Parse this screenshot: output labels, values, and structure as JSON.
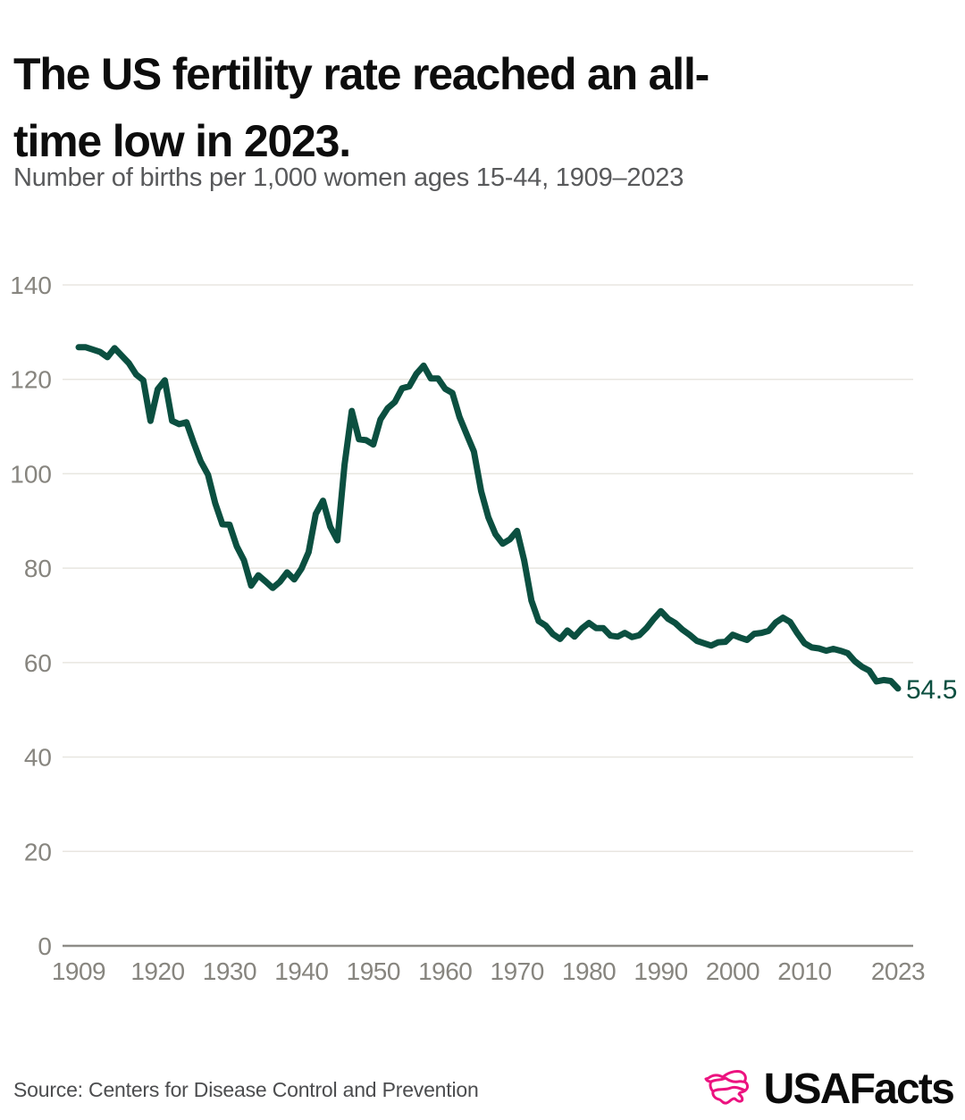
{
  "header": {
    "title_line1": "The US fertility rate reached an all-",
    "title_line2": "time low in 2023.",
    "subtitle": "Number of births per 1,000 women ages 15-44, 1909–2023"
  },
  "footer": {
    "source": "Source: Centers for Disease Control and Prevention",
    "logo_text": "USAFacts"
  },
  "colors": {
    "line": "#0B4F40",
    "grid": "#E8E6E0",
    "axis": "#8E8C87",
    "tick_label": "#87857F",
    "title": "#0D0D0D",
    "subtitle": "#58595B",
    "brand_pink": "#EC127F"
  },
  "chart_data": {
    "type": "line",
    "title": "The US fertility rate reached an all-time low in 2023.",
    "subtitle": "Number of births per 1,000 women ages 15-44, 1909–2023",
    "series_name": "Births per 1,000 women ages 15-44",
    "xlabel": "",
    "ylabel": "",
    "ylim": [
      0,
      140
    ],
    "yticks": [
      0,
      20,
      40,
      60,
      80,
      100,
      120,
      140
    ],
    "xticks": [
      1909,
      1920,
      1930,
      1940,
      1950,
      1960,
      1970,
      1980,
      1990,
      2000,
      2010,
      2023
    ],
    "grid": true,
    "legend_position": "none",
    "end_label": "54.5",
    "x": [
      1909,
      1910,
      1911,
      1912,
      1913,
      1914,
      1915,
      1916,
      1917,
      1918,
      1919,
      1920,
      1921,
      1922,
      1923,
      1924,
      1925,
      1926,
      1927,
      1928,
      1929,
      1930,
      1931,
      1932,
      1933,
      1934,
      1935,
      1936,
      1937,
      1938,
      1939,
      1940,
      1941,
      1942,
      1943,
      1944,
      1945,
      1946,
      1947,
      1948,
      1949,
      1950,
      1951,
      1952,
      1953,
      1954,
      1955,
      1956,
      1957,
      1958,
      1959,
      1960,
      1961,
      1962,
      1963,
      1964,
      1965,
      1966,
      1967,
      1968,
      1969,
      1970,
      1971,
      1972,
      1973,
      1974,
      1975,
      1976,
      1977,
      1978,
      1979,
      1980,
      1981,
      1982,
      1983,
      1984,
      1985,
      1986,
      1987,
      1988,
      1989,
      1990,
      1991,
      1992,
      1993,
      1994,
      1995,
      1996,
      1997,
      1998,
      1999,
      2000,
      2001,
      2002,
      2003,
      2004,
      2005,
      2006,
      2007,
      2008,
      2009,
      2010,
      2011,
      2012,
      2013,
      2014,
      2015,
      2016,
      2017,
      2018,
      2019,
      2020,
      2021,
      2022,
      2023
    ],
    "values": [
      126.8,
      126.8,
      126.3,
      125.8,
      124.7,
      126.6,
      125.0,
      123.4,
      121.0,
      119.8,
      111.2,
      117.9,
      119.8,
      111.2,
      110.5,
      110.9,
      106.6,
      102.6,
      99.8,
      93.8,
      89.3,
      89.2,
      84.6,
      81.7,
      76.3,
      78.5,
      77.2,
      75.8,
      77.1,
      79.1,
      77.6,
      79.9,
      83.4,
      91.5,
      94.3,
      88.8,
      85.9,
      101.9,
      113.3,
      107.3,
      107.1,
      106.2,
      111.5,
      113.9,
      115.2,
      118.1,
      118.5,
      121.2,
      122.9,
      120.2,
      120.2,
      118.0,
      117.1,
      112.0,
      108.3,
      104.7,
      96.3,
      90.8,
      87.2,
      85.2,
      86.1,
      87.9,
      81.6,
      73.1,
      68.8,
      67.8,
      66.0,
      65.0,
      66.8,
      65.5,
      67.2,
      68.4,
      67.3,
      67.3,
      65.7,
      65.5,
      66.3,
      65.4,
      65.8,
      67.3,
      69.2,
      70.9,
      69.3,
      68.4,
      67.0,
      65.9,
      64.6,
      64.1,
      63.6,
      64.3,
      64.4,
      65.9,
      65.3,
      64.8,
      66.1,
      66.3,
      66.7,
      68.5,
      69.5,
      68.6,
      66.2,
      64.1,
      63.2,
      63.0,
      62.5,
      62.9,
      62.5,
      62.0,
      60.3,
      59.1,
      58.3,
      56.0,
      56.3,
      56.1,
      54.5
    ]
  }
}
